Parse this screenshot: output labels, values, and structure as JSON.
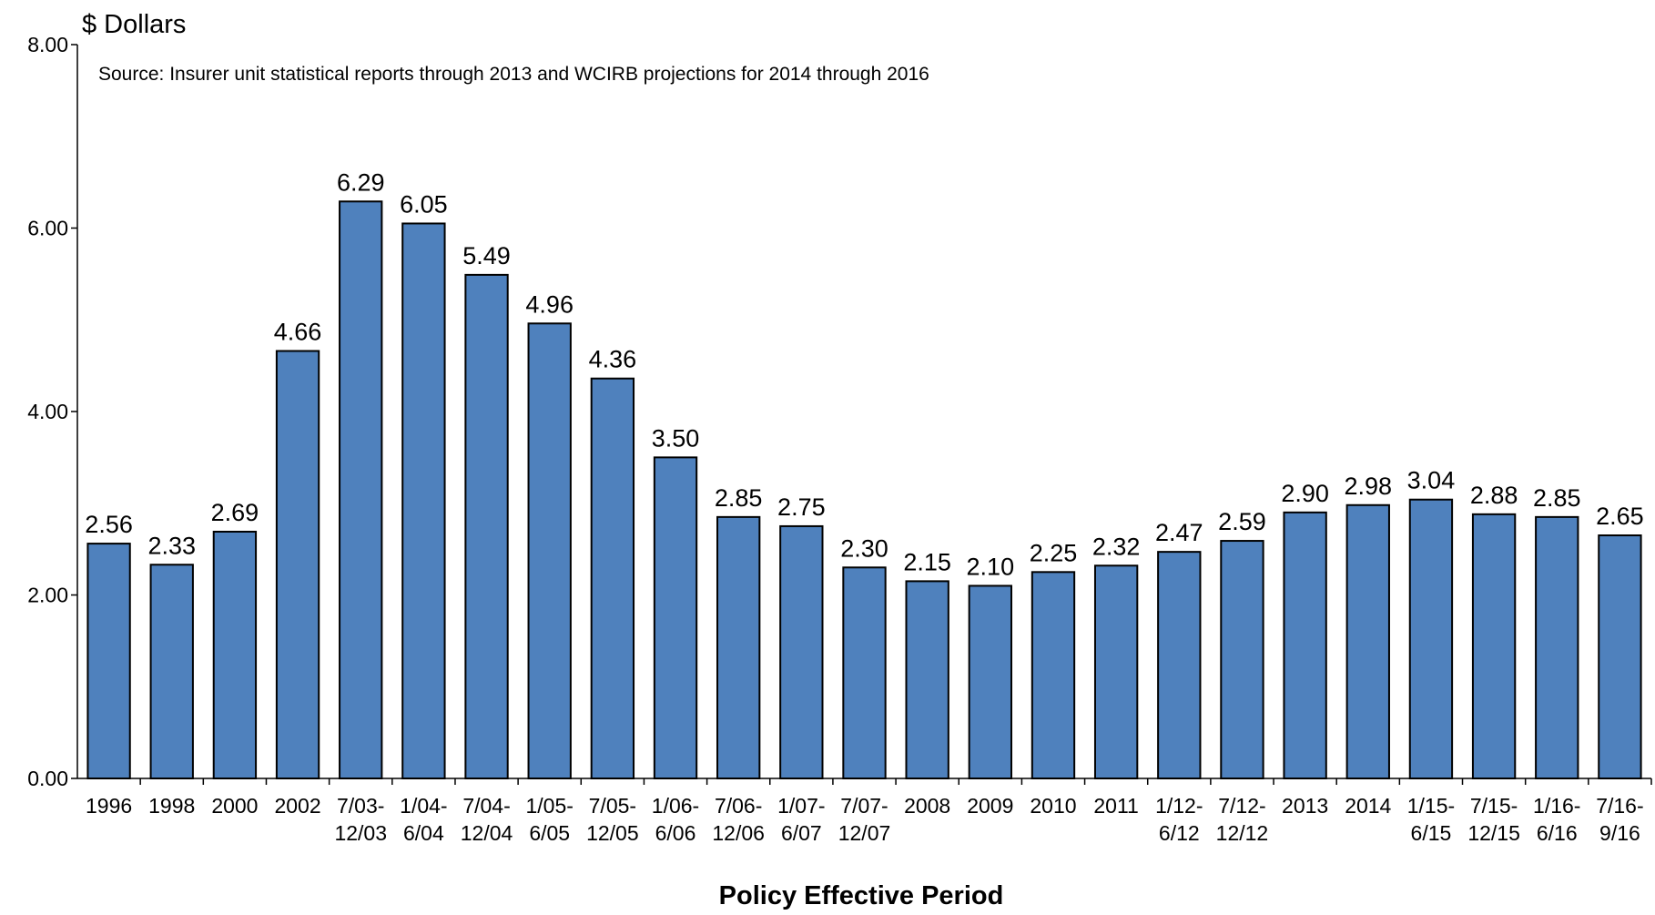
{
  "chart_data": {
    "type": "bar",
    "y_axis_label": "$ Dollars",
    "note": "Source: Insurer unit statistical reports through 2013 and WCIRB projections for 2014 through 2016",
    "x_axis_label": "Policy Effective Period",
    "categories": [
      "1996",
      "1998",
      "2000",
      "2002",
      "7/03-12/03",
      "1/04-6/04",
      "7/04-12/04",
      "1/05-6/05",
      "7/05-12/05",
      "1/06-6/06",
      "7/06-12/06",
      "1/07-6/07",
      "7/07-12/07",
      "2008",
      "2009",
      "2010",
      "2011",
      "1/12-6/12",
      "7/12-12/12",
      "2013",
      "2014",
      "1/15-6/15",
      "7/15-12/15",
      "1/16-6/16",
      "7/16-9/16"
    ],
    "values": [
      2.56,
      2.33,
      2.69,
      4.66,
      6.29,
      6.05,
      5.49,
      4.96,
      4.36,
      3.5,
      2.85,
      2.75,
      2.3,
      2.15,
      2.1,
      2.25,
      2.32,
      2.47,
      2.59,
      2.9,
      2.98,
      3.04,
      2.88,
      2.85,
      2.65
    ],
    "value_labels": [
      "2.56",
      "2.33",
      "2.69",
      "4.66",
      "6.29",
      "6.05",
      "5.49",
      "4.96",
      "4.36",
      "3.50",
      "2.85",
      "2.75",
      "2.30",
      "2.15",
      "2.10",
      "2.25",
      "2.32",
      "2.47",
      "2.59",
      "2.90",
      "2.98",
      "3.04",
      "2.88",
      "2.85",
      "2.65"
    ],
    "color": "#4f81bd",
    "ylim": [
      0,
      8
    ],
    "yticks": [
      {
        "value": 0,
        "label": "0.00"
      },
      {
        "value": 2,
        "label": "2.00"
      },
      {
        "value": 4,
        "label": "4.00"
      },
      {
        "value": 6,
        "label": "6.00"
      },
      {
        "value": 8,
        "label": "8.00"
      }
    ],
    "grid": false
  }
}
